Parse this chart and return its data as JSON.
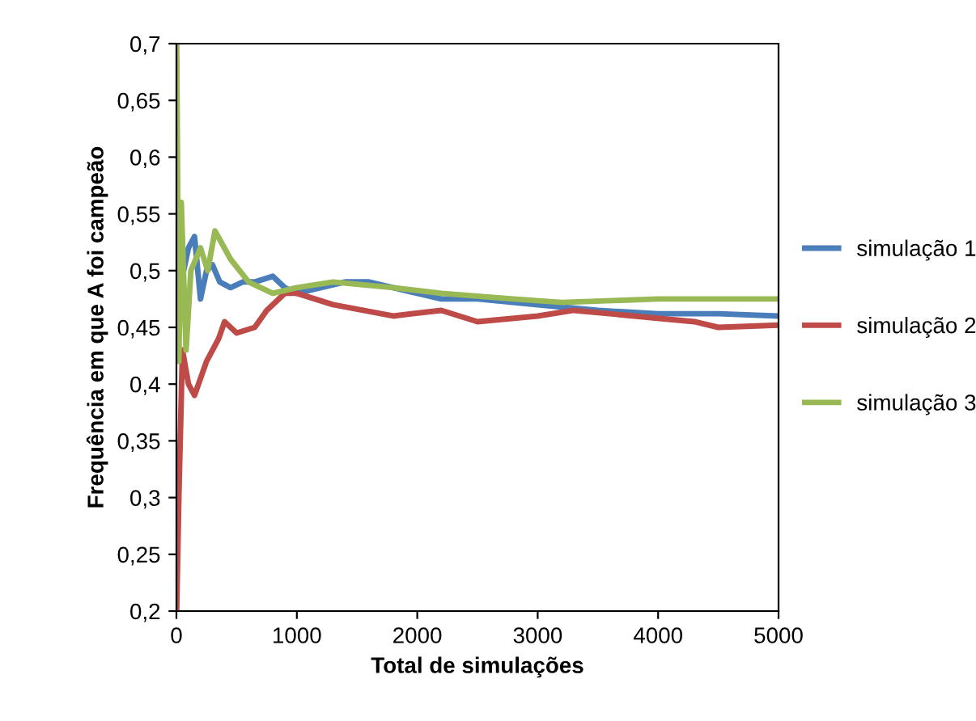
{
  "chart_data": {
    "type": "line",
    "xlabel": "Total de simulações",
    "ylabel": "Frequência em que A foi campeão",
    "xlim": [
      0,
      5000
    ],
    "ylim": [
      0.2,
      0.7
    ],
    "xticks": [
      0,
      1000,
      2000,
      3000,
      4000,
      5000
    ],
    "yticks": [
      {
        "value": 0.2,
        "label": "0,2"
      },
      {
        "value": 0.25,
        "label": "0,25"
      },
      {
        "value": 0.3,
        "label": "0,3"
      },
      {
        "value": 0.35,
        "label": "0,35"
      },
      {
        "value": 0.4,
        "label": "0,4"
      },
      {
        "value": 0.45,
        "label": "0,45"
      },
      {
        "value": 0.5,
        "label": "0,5"
      },
      {
        "value": 0.55,
        "label": "0,55"
      },
      {
        "value": 0.6,
        "label": "0,6"
      },
      {
        "value": 0.65,
        "label": "0,65"
      },
      {
        "value": 0.7,
        "label": "0,7"
      }
    ],
    "grid": false,
    "legend": "right",
    "marker": "none",
    "line_style": "solid",
    "series": [
      {
        "name": "simulação 1",
        "color": "#4a7ebb",
        "x": [
          5,
          30,
          60,
          100,
          150,
          200,
          250,
          300,
          360,
          450,
          550,
          650,
          800,
          900,
          1000,
          1200,
          1400,
          1600,
          1800,
          2000,
          2200,
          2500,
          3000,
          3500,
          4000,
          4500,
          5000
        ],
        "values": [
          0.43,
          0.51,
          0.5,
          0.52,
          0.53,
          0.475,
          0.5,
          0.505,
          0.49,
          0.485,
          0.49,
          0.49,
          0.495,
          0.485,
          0.48,
          0.485,
          0.49,
          0.49,
          0.485,
          0.48,
          0.475,
          0.475,
          0.47,
          0.465,
          0.462,
          0.462,
          0.46
        ]
      },
      {
        "name": "simulação 2",
        "color": "#be4b48",
        "x": [
          2,
          20,
          50,
          100,
          150,
          250,
          350,
          400,
          500,
          650,
          750,
          900,
          1000,
          1300,
          1800,
          2200,
          2500,
          3000,
          3300,
          3800,
          4300,
          4500,
          5000
        ],
        "values": [
          0.2,
          0.3,
          0.43,
          0.4,
          0.39,
          0.42,
          0.44,
          0.455,
          0.445,
          0.45,
          0.465,
          0.48,
          0.48,
          0.47,
          0.46,
          0.465,
          0.455,
          0.46,
          0.465,
          0.46,
          0.455,
          0.45,
          0.452
        ]
      },
      {
        "name": "simulação 3",
        "color": "#98b954",
        "x": [
          2,
          20,
          40,
          80,
          120,
          200,
          260,
          320,
          450,
          600,
          800,
          1000,
          1300,
          1800,
          2200,
          2800,
          3200,
          4000,
          5000
        ],
        "values": [
          0.7,
          0.42,
          0.56,
          0.43,
          0.5,
          0.52,
          0.5,
          0.535,
          0.51,
          0.49,
          0.48,
          0.485,
          0.49,
          0.485,
          0.48,
          0.475,
          0.472,
          0.475,
          0.475
        ]
      }
    ]
  }
}
